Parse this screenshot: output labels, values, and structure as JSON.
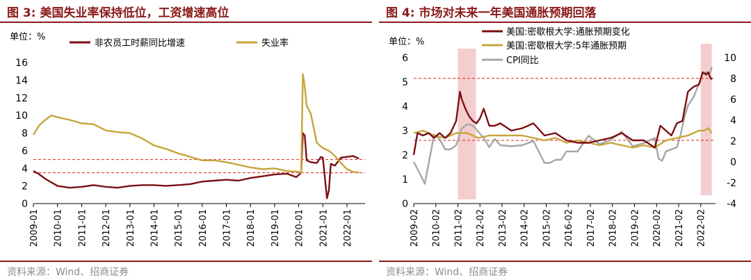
{
  "charts": [
    {
      "title": "图 3: 美国失业率保持低位，工资增速高位",
      "unit_label": "单位：%",
      "source": "资料来源：Wind、招商证券"
    },
    {
      "title": "图 4: 市场对未来一年美国通胀预期回落",
      "unit_label": "单位：%",
      "source": "资料来源：Wind、招商证券"
    }
  ],
  "colors": {
    "wage": "#7b0f12",
    "unemployment": "#c8a43a",
    "michigan_5y": "#c8a43a",
    "cpi": "#a6a6a6",
    "ref_line": "#e02020",
    "shade": "#f2c6c6",
    "title": "#8b1a1a"
  },
  "chart_data": [
    {
      "type": "line",
      "ylim": [
        0,
        16
      ],
      "yticks": [
        "0",
        "2",
        "4",
        "6",
        "8",
        "10",
        "12",
        "14",
        "16"
      ],
      "xlim": [
        2009.0,
        2022.75
      ],
      "xtick_labels": [
        "2009-01",
        "2010-01",
        "2011-01",
        "2012-01",
        "2013-01",
        "2014-01",
        "2015-01",
        "2016-01",
        "2017-01",
        "2018-01",
        "2019-01",
        "2020-01",
        "2021-01",
        "2022-01"
      ],
      "reference_lines": [
        5.0,
        3.5
      ],
      "legend_position": "top",
      "series": [
        {
          "name": "非农员工时薪同比增速",
          "x": [
            2009.0,
            2009.25,
            2009.5,
            2009.75,
            2010.0,
            2010.5,
            2011.0,
            2011.5,
            2012.0,
            2012.5,
            2013.0,
            2013.5,
            2014.0,
            2014.5,
            2015.0,
            2015.5,
            2016.0,
            2016.5,
            2017.0,
            2017.5,
            2018.0,
            2018.5,
            2019.0,
            2019.5,
            2019.9,
            2020.1,
            2020.17,
            2020.25,
            2020.33,
            2020.5,
            2020.75,
            2020.92,
            2021.0,
            2021.17,
            2021.25,
            2021.33,
            2021.5,
            2021.75,
            2022.0,
            2022.25,
            2022.5
          ],
          "values": [
            3.7,
            3.3,
            2.8,
            2.4,
            2.0,
            1.8,
            1.9,
            2.1,
            1.9,
            1.8,
            2.0,
            2.1,
            2.1,
            2.0,
            2.1,
            2.2,
            2.5,
            2.6,
            2.7,
            2.6,
            2.9,
            3.1,
            3.3,
            3.4,
            3.0,
            3.5,
            8.0,
            7.7,
            4.9,
            4.7,
            4.6,
            5.3,
            5.2,
            0.6,
            1.5,
            4.5,
            4.3,
            5.2,
            5.3,
            5.4,
            5.1
          ]
        },
        {
          "name": "失业率",
          "x": [
            2009.0,
            2009.25,
            2009.5,
            2009.75,
            2010.0,
            2010.5,
            2011.0,
            2011.5,
            2012.0,
            2012.5,
            2013.0,
            2013.5,
            2014.0,
            2014.5,
            2015.0,
            2015.5,
            2016.0,
            2016.5,
            2017.0,
            2017.5,
            2018.0,
            2018.5,
            2019.0,
            2019.5,
            2020.0,
            2020.1,
            2020.17,
            2020.25,
            2020.33,
            2020.5,
            2020.75,
            2021.0,
            2021.25,
            2021.5,
            2021.75,
            2022.0,
            2022.25,
            2022.5
          ],
          "values": [
            7.8,
            8.9,
            9.5,
            10.0,
            9.8,
            9.5,
            9.1,
            9.0,
            8.3,
            8.1,
            8.0,
            7.4,
            6.6,
            6.2,
            5.7,
            5.3,
            4.9,
            4.9,
            4.7,
            4.4,
            4.1,
            3.9,
            4.0,
            3.7,
            3.6,
            3.5,
            14.7,
            13.3,
            11.1,
            10.2,
            6.9,
            6.3,
            6.0,
            5.4,
            4.6,
            3.9,
            3.6,
            3.5
          ]
        }
      ]
    },
    {
      "type": "line",
      "ylim_left": [
        0,
        6
      ],
      "yticks_left": [
        "0",
        "1",
        "2",
        "3",
        "4",
        "5",
        "6"
      ],
      "ylim_right": [
        -4,
        10
      ],
      "yticks_right": [
        "-4",
        "-2",
        "0",
        "2",
        "4",
        "6",
        "8",
        "10"
      ],
      "xlim": [
        2009.08,
        2022.75
      ],
      "xtick_labels": [
        "2009-02",
        "2010-02",
        "2011-02",
        "2012-02",
        "2013-02",
        "2014-02",
        "2015-02",
        "2016-02",
        "2017-02",
        "2018-02",
        "2019-02",
        "2020-02",
        "2021-02",
        "2022-02"
      ],
      "reference_lines": [
        5.15,
        2.6
      ],
      "shaded_ranges": [
        [
          2011.08,
          2011.9
        ],
        [
          2022.08,
          2022.58
        ]
      ],
      "legend_position": "top",
      "series": [
        {
          "name": "美国:密歇根大学:通胀预期变化",
          "axis": "left",
          "x": [
            2009.08,
            2009.25,
            2009.5,
            2009.75,
            2010.0,
            2010.25,
            2010.5,
            2010.75,
            2011.0,
            2011.17,
            2011.25,
            2011.42,
            2011.58,
            2011.75,
            2011.92,
            2012.08,
            2012.25,
            2012.5,
            2012.75,
            2013.0,
            2013.5,
            2014.0,
            2014.5,
            2015.0,
            2015.5,
            2016.0,
            2016.5,
            2017.0,
            2017.5,
            2018.0,
            2018.5,
            2019.0,
            2019.5,
            2020.0,
            2020.25,
            2020.5,
            2020.75,
            2021.0,
            2021.25,
            2021.5,
            2021.75,
            2022.0,
            2022.17,
            2022.33,
            2022.42,
            2022.5,
            2022.58
          ],
          "values": [
            2.0,
            2.9,
            2.8,
            2.9,
            2.7,
            2.9,
            2.7,
            2.9,
            3.4,
            4.6,
            4.3,
            3.9,
            3.6,
            3.4,
            3.3,
            3.5,
            3.9,
            3.2,
            3.2,
            3.3,
            3.0,
            3.1,
            3.3,
            2.8,
            2.9,
            2.6,
            2.5,
            2.5,
            2.6,
            2.7,
            2.9,
            2.6,
            2.6,
            2.3,
            3.2,
            3.0,
            2.8,
            3.3,
            3.4,
            4.6,
            4.8,
            4.9,
            5.4,
            5.3,
            5.4,
            5.2,
            5.1
          ]
        },
        {
          "name": "美国:密歇根大学:5年通胀预期",
          "axis": "left",
          "x": [
            2009.08,
            2009.5,
            2010.0,
            2010.5,
            2011.0,
            2011.5,
            2012.0,
            2012.5,
            2013.0,
            2013.5,
            2014.0,
            2014.5,
            2015.0,
            2015.5,
            2016.0,
            2016.5,
            2017.0,
            2017.5,
            2018.0,
            2018.5,
            2019.0,
            2019.5,
            2020.0,
            2020.5,
            2021.0,
            2021.5,
            2022.0,
            2022.25,
            2022.42,
            2022.5,
            2022.58
          ],
          "values": [
            2.9,
            3.0,
            2.8,
            2.7,
            2.9,
            2.9,
            2.7,
            2.8,
            2.8,
            2.8,
            2.8,
            2.7,
            2.6,
            2.7,
            2.5,
            2.6,
            2.5,
            2.4,
            2.5,
            2.4,
            2.3,
            2.4,
            2.3,
            2.6,
            2.7,
            2.8,
            3.0,
            3.0,
            3.1,
            3.0,
            2.9
          ]
        },
        {
          "name": "CPI同比",
          "axis": "right",
          "x": [
            2009.08,
            2009.42,
            2009.58,
            2009.75,
            2010.0,
            2010.25,
            2010.5,
            2010.75,
            2011.0,
            2011.25,
            2011.5,
            2011.75,
            2012.0,
            2012.25,
            2012.5,
            2012.75,
            2013.0,
            2013.5,
            2014.0,
            2014.5,
            2015.0,
            2015.25,
            2015.5,
            2015.75,
            2016.0,
            2016.5,
            2017.0,
            2017.5,
            2018.0,
            2018.5,
            2019.0,
            2019.5,
            2020.0,
            2020.17,
            2020.33,
            2020.5,
            2020.75,
            2021.0,
            2021.17,
            2021.33,
            2021.5,
            2021.75,
            2022.0,
            2022.17,
            2022.33,
            2022.5,
            2022.58
          ],
          "values": [
            0.0,
            -1.4,
            -2.1,
            -0.2,
            2.6,
            2.2,
            1.2,
            1.2,
            1.6,
            3.2,
            3.6,
            3.5,
            2.9,
            2.3,
            1.4,
            2.2,
            1.6,
            1.5,
            1.6,
            2.0,
            -0.1,
            -0.1,
            0.2,
            0.2,
            1.0,
            1.0,
            2.5,
            1.7,
            2.1,
            2.9,
            1.5,
            1.8,
            2.3,
            0.3,
            0.1,
            1.0,
            1.2,
            1.4,
            2.6,
            4.2,
            5.4,
            6.2,
            7.5,
            8.5,
            8.6,
            8.5,
            9.1
          ]
        }
      ]
    }
  ]
}
